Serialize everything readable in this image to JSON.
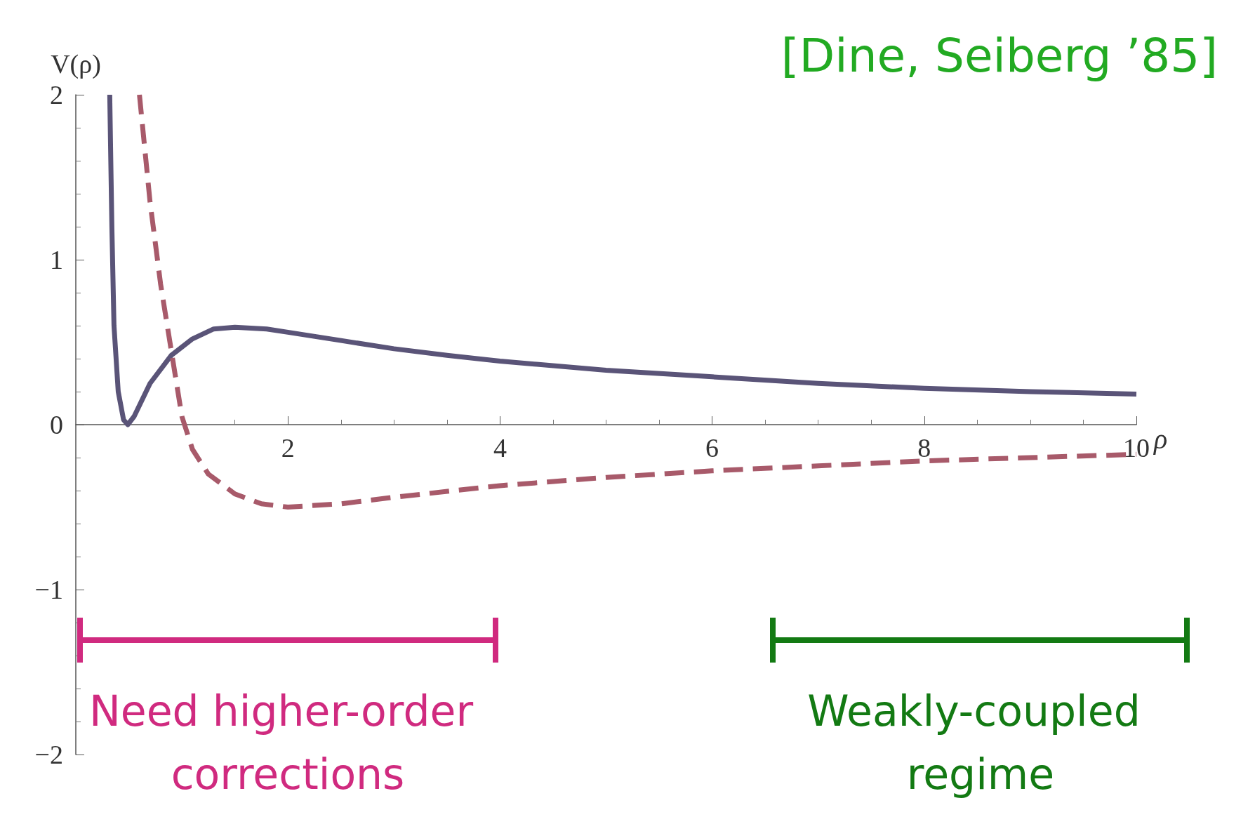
{
  "chart_data": {
    "type": "line",
    "xlabel": "ρ",
    "ylabel": "V(ρ)",
    "xlim": [
      0,
      10
    ],
    "xticks": [
      2,
      4,
      6,
      8,
      10
    ],
    "ylim": [
      -2,
      2
    ],
    "yticks": [
      -2,
      -1,
      0,
      1,
      2
    ],
    "marker": "none",
    "annotations": [
      "[Dine, Seiberg ’85]",
      "Need higher-order corrections",
      "Weakly-coupled regime"
    ],
    "series": [
      {
        "color": "#5a5478",
        "line_style": "solid",
        "x": [
          0.32,
          0.34,
          0.36,
          0.4,
          0.45,
          0.49,
          0.55,
          0.7,
          0.9,
          1.1,
          1.3,
          1.5,
          1.8,
          2,
          2.5,
          3,
          3.5,
          4,
          5,
          6,
          7,
          8,
          9,
          10
        ],
        "values": [
          2,
          1.2,
          0.6,
          0.2,
          0.03,
          0,
          0.05,
          0.25,
          0.42,
          0.52,
          0.58,
          0.59,
          0.58,
          0.56,
          0.51,
          0.46,
          0.42,
          0.385,
          0.33,
          0.29,
          0.25,
          0.22,
          0.2,
          0.185
        ]
      },
      {
        "color": "#a85a6a",
        "line_style": "dashed",
        "x": [
          0.6,
          0.7,
          0.8,
          0.9,
          1.0,
          1.1,
          1.25,
          1.5,
          1.75,
          2,
          2.5,
          3,
          4,
          5,
          6,
          7,
          8,
          9,
          10
        ],
        "values": [
          2,
          1.35,
          0.85,
          0.45,
          0.05,
          -0.15,
          -0.3,
          -0.42,
          -0.48,
          -0.5,
          -0.48,
          -0.44,
          -0.37,
          -0.32,
          -0.28,
          -0.25,
          -0.22,
          -0.2,
          -0.18
        ]
      }
    ]
  }
}
